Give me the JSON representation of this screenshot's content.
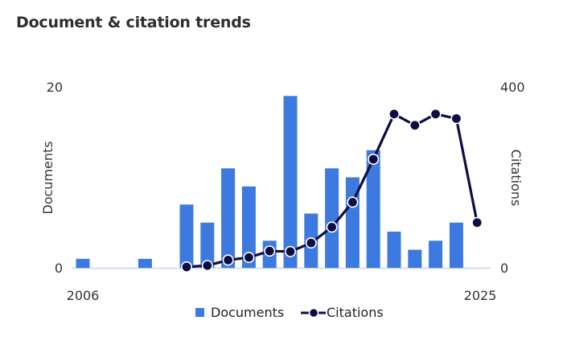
{
  "title": "Document & citation trends",
  "chart_data": {
    "type": "bar-line",
    "title": "Document & citation trends",
    "categories": [
      "2006",
      "2007",
      "2008",
      "2009",
      "2010",
      "2011",
      "2012",
      "2013",
      "2014",
      "2015",
      "2016",
      "2017",
      "2018",
      "2019",
      "2020",
      "2021",
      "2022",
      "2023",
      "2024",
      "2025"
    ],
    "x_tick_labels": {
      "first": "2006",
      "last": "2025"
    },
    "series": [
      {
        "name": "Documents",
        "type": "bar",
        "axis": "left",
        "color": "#3d7ae0",
        "values": [
          1,
          0,
          0,
          1,
          0,
          7,
          5,
          11,
          9,
          3,
          19,
          6,
          11,
          10,
          13,
          4,
          2,
          3,
          5,
          0
        ]
      },
      {
        "name": "Citations",
        "type": "line",
        "axis": "right",
        "color": "#0d0d45",
        "start_index": 5,
        "values": [
          null,
          null,
          null,
          null,
          null,
          2,
          5,
          17,
          23,
          37,
          36,
          55,
          90,
          145,
          240,
          340,
          315,
          340,
          330,
          100
        ]
      }
    ],
    "ylabel_left": "Documents",
    "ylabel_right": "Citations",
    "ylim_left": [
      0,
      20
    ],
    "ylim_right": [
      0,
      400
    ],
    "yticks_left": [
      "0",
      "20"
    ],
    "yticks_right": [
      "0",
      "400"
    ],
    "legend_position": "bottom",
    "grid": false
  }
}
